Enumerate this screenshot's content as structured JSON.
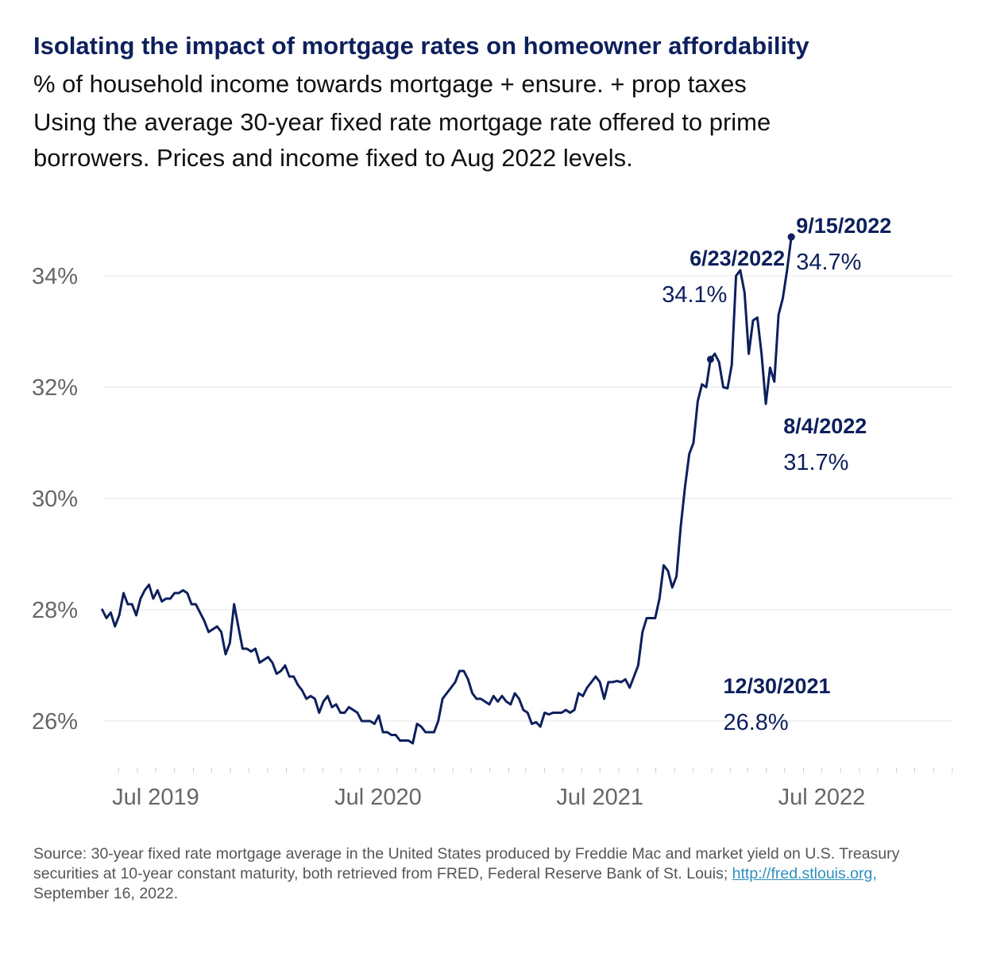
{
  "header": {
    "title": "Isolating the impact of mortgage rates on homeowner affordability",
    "subtitle_1": "% of household income towards mortgage + ensure. + prop taxes",
    "subtitle_2": "Using the average 30-year fixed rate mortgage rate offered to prime",
    "subtitle_3": "borrowers. Prices and income fixed to Aug 2022 levels."
  },
  "chart_data": {
    "type": "line",
    "title": "Isolating the impact of mortgage rates on homeowner affordability",
    "ylim": [
      25,
      35
    ],
    "yticks": [
      26,
      28,
      30,
      32,
      34
    ],
    "ytick_labels": [
      "26%",
      "28%",
      "30%",
      "32%",
      "34%"
    ],
    "xtick_labels": [
      "Jul 2019",
      "Jul 2020",
      "Jul 2021",
      "Jul 2022"
    ],
    "grid": true,
    "legend": "none",
    "color": "#0d1f5c",
    "start_week": "2019-04-04",
    "values": [
      28.0,
      27.85,
      27.95,
      27.7,
      27.9,
      28.3,
      28.1,
      28.1,
      27.9,
      28.2,
      28.35,
      28.45,
      28.2,
      28.35,
      28.15,
      28.2,
      28.2,
      28.3,
      28.3,
      28.35,
      28.3,
      28.1,
      28.1,
      27.95,
      27.8,
      27.6,
      27.65,
      27.7,
      27.6,
      27.2,
      27.4,
      28.1,
      27.7,
      27.3,
      27.3,
      27.25,
      27.3,
      27.05,
      27.1,
      27.15,
      27.05,
      26.85,
      26.9,
      27.0,
      26.8,
      26.8,
      26.65,
      26.55,
      26.4,
      26.45,
      26.4,
      26.15,
      26.35,
      26.45,
      26.25,
      26.3,
      26.15,
      26.15,
      26.25,
      26.2,
      26.15,
      26.0,
      26.0,
      26.0,
      25.95,
      26.1,
      25.8,
      25.8,
      25.75,
      25.75,
      25.65,
      25.65,
      25.65,
      25.6,
      25.95,
      25.9,
      25.8,
      25.8,
      25.8,
      26.0,
      26.4,
      26.5,
      26.6,
      26.7,
      26.9,
      26.9,
      26.75,
      26.5,
      26.4,
      26.4,
      26.35,
      26.3,
      26.45,
      26.35,
      26.45,
      26.35,
      26.3,
      26.5,
      26.4,
      26.2,
      26.15,
      25.95,
      25.98,
      25.9,
      26.15,
      26.12,
      26.15,
      26.15,
      26.15,
      26.2,
      26.15,
      26.2,
      26.5,
      26.45,
      26.6,
      26.7,
      26.8,
      26.7,
      26.4,
      26.7,
      26.7,
      26.72,
      26.7,
      26.75,
      26.6,
      26.8,
      27.0,
      27.6,
      27.85,
      27.85,
      27.85,
      28.2,
      28.8,
      28.7,
      28.4,
      28.6,
      29.5,
      30.2,
      30.8,
      31.0,
      31.75,
      32.05,
      32.0,
      32.5,
      32.6,
      32.45,
      32.0,
      31.98,
      32.4,
      34.0,
      34.1,
      33.7,
      32.6,
      33.2,
      33.25,
      32.6,
      31.7,
      32.35,
      32.1,
      33.3,
      33.6,
      34.1,
      34.7
    ],
    "annotations": [
      {
        "date": "12/30/2021",
        "value": "26.8%"
      },
      {
        "date": "6/23/2022",
        "value": "34.1%"
      },
      {
        "date": "8/4/2022",
        "value": "31.7%"
      },
      {
        "date": "9/15/2022",
        "value": "34.7%"
      }
    ]
  },
  "footer": {
    "source_prefix": "Source: 30-year fixed rate mortgage average in the United States produced by Freddie Mac and market yield on U.S. Treasury securities at 10-year constant maturity, both retrieved from FRED, Federal Reserve Bank of St. Louis; ",
    "source_link": "http://fred.stlouis.org,",
    "source_suffix": " September 16, 2022."
  }
}
